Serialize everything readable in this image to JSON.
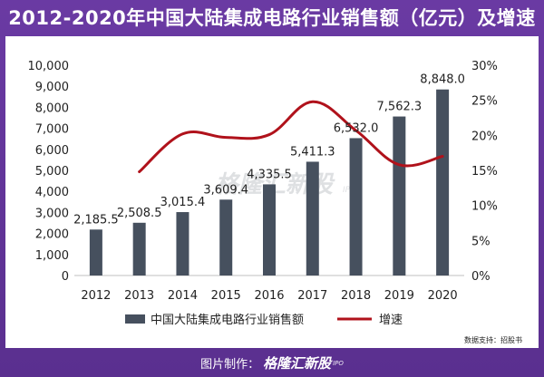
{
  "title": "2012-2020年中国大陆集成电路行业销售额（亿元）及增速",
  "footer": {
    "label": "图片制作：",
    "brand": "格隆汇新股",
    "brand_sub": "IPO"
  },
  "data_source": "数据支持：招股书",
  "watermark": {
    "text": "格隆汇新股",
    "sub": "IPO"
  },
  "colors": {
    "bar": "#46505e",
    "line": "#b0121b",
    "background": "#6a3aa3"
  },
  "chart_data": {
    "type": "bar",
    "categories": [
      "2012",
      "2013",
      "2014",
      "2015",
      "2016",
      "2017",
      "2018",
      "2019",
      "2020"
    ],
    "series": [
      {
        "name": "中国大陆集成电路行业销售额",
        "type": "bar",
        "axis": "left",
        "values": [
          2185.5,
          2508.5,
          3015.4,
          3609.4,
          4335.5,
          5411.3,
          6532.0,
          7562.3,
          8848.0
        ],
        "labels": [
          "2,185.5",
          "2,508.5",
          "3,015.4",
          "3,609.4",
          "4,335.5",
          "5,411.3",
          "6,532.0",
          "7,562.3",
          "8,848.0"
        ]
      },
      {
        "name": "增速",
        "type": "line",
        "axis": "right",
        "values": [
          null,
          0.148,
          0.202,
          0.197,
          0.201,
          0.248,
          0.207,
          0.158,
          0.17
        ]
      }
    ],
    "y_left": {
      "min": 0,
      "max": 10000,
      "ticks": [
        "0",
        "1,000",
        "2,000",
        "3,000",
        "4,000",
        "5,000",
        "6,000",
        "7,000",
        "8,000",
        "9,000",
        "10,000"
      ]
    },
    "y_right": {
      "min": 0,
      "max": 0.3,
      "ticks": [
        "0%",
        "5%",
        "10%",
        "15%",
        "20%",
        "25%",
        "30%"
      ]
    },
    "legend_position": "bottom",
    "grid": false
  }
}
